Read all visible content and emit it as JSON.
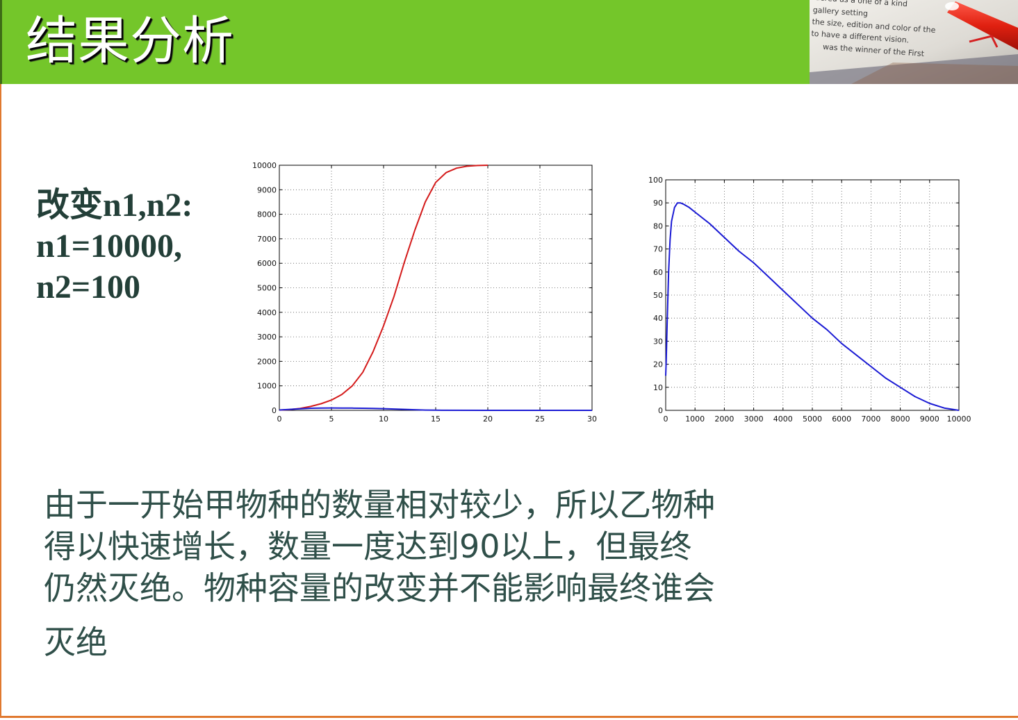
{
  "title": "结果分析",
  "params": {
    "line1": "改变n1,n2:",
    "line2": "n1=10000,",
    "line3": "n2=100"
  },
  "conclusion": {
    "lines": [
      "由于一开始甲物种的数量相对较少，所以乙物种",
      "得以快速增长，数量一度达到90以上，但最终",
      "仍然灭绝。物种容量的改变并不能影响最终谁会",
      "灭绝"
    ]
  },
  "header_photo": {
    "text_lines": [
      "dered as a one of a kind",
      "gallery setting",
      "the size, edition and color of the",
      "to have a different vision.",
      "was the winner of the First"
    ]
  },
  "chart_data": [
    {
      "type": "line",
      "title": "",
      "xlabel": "",
      "ylabel": "",
      "xlim": [
        0,
        30
      ],
      "ylim": [
        0,
        10000
      ],
      "grid": true,
      "xticks": [
        0,
        5,
        10,
        15,
        20,
        25,
        30
      ],
      "yticks": [
        0,
        1000,
        2000,
        3000,
        4000,
        5000,
        6000,
        7000,
        8000,
        9000,
        10000
      ],
      "series": [
        {
          "color": "#d41a1a",
          "x": [
            0,
            1,
            2,
            3,
            4,
            5,
            6,
            7,
            8,
            9,
            10,
            11,
            12,
            13,
            14,
            15,
            16,
            17,
            18,
            19,
            20
          ],
          "y": [
            10,
            30,
            80,
            160,
            270,
            420,
            650,
            1000,
            1550,
            2400,
            3450,
            4650,
            6050,
            7350,
            8500,
            9300,
            9700,
            9880,
            9960,
            9990,
            10000
          ]
        },
        {
          "color": "#1a1ad4",
          "x": [
            0,
            1,
            2,
            3,
            4,
            5,
            6,
            7,
            8,
            9,
            10,
            11,
            12,
            13,
            14,
            15,
            20,
            25,
            30
          ],
          "y": [
            15,
            40,
            65,
            85,
            92,
            95,
            93,
            90,
            85,
            78,
            68,
            55,
            40,
            25,
            12,
            5,
            1,
            0,
            0
          ]
        }
      ]
    },
    {
      "type": "line",
      "title": "",
      "xlabel": "",
      "ylabel": "",
      "xlim": [
        0,
        10000
      ],
      "ylim": [
        0,
        100
      ],
      "grid": true,
      "xticks": [
        0,
        1000,
        2000,
        3000,
        4000,
        5000,
        6000,
        7000,
        8000,
        9000,
        10000
      ],
      "yticks": [
        0,
        10,
        20,
        30,
        40,
        50,
        60,
        70,
        80,
        90,
        100
      ],
      "series": [
        {
          "color": "#1a1ad4",
          "x": [
            0,
            20,
            50,
            100,
            150,
            200,
            300,
            400,
            500,
            600,
            800,
            1000,
            1500,
            2000,
            2500,
            3000,
            3500,
            4000,
            4500,
            5000,
            5500,
            6000,
            6500,
            7000,
            7500,
            8000,
            8500,
            9000,
            9500,
            10000
          ],
          "y": [
            15,
            22,
            38,
            60,
            74,
            82,
            88,
            90,
            90,
            89.5,
            88,
            86,
            81,
            75,
            69,
            64,
            58,
            52,
            46,
            40,
            35,
            29,
            24,
            19,
            14,
            10,
            6,
            3,
            1,
            0
          ]
        }
      ]
    }
  ]
}
